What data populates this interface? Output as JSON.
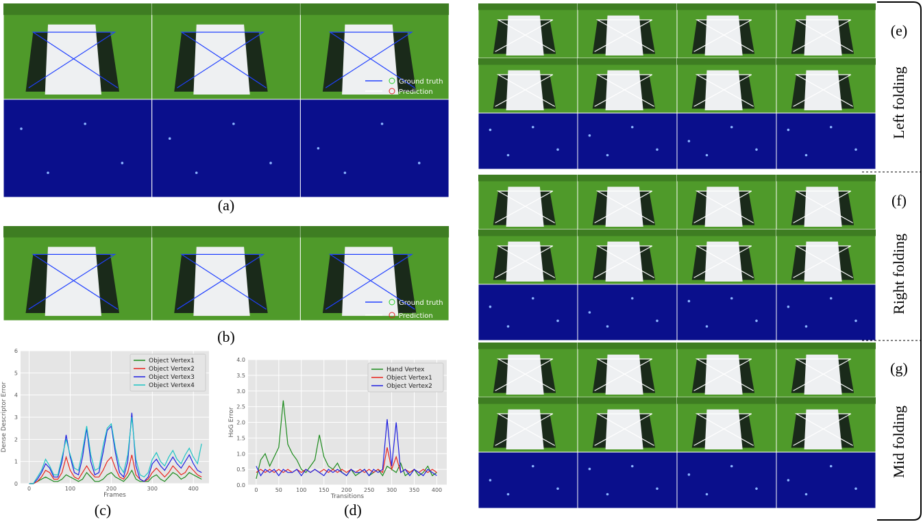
{
  "figure": {
    "panel_labels": [
      "(a)",
      "(b)",
      "(c)",
      "(d)",
      "(e)",
      "(f)",
      "(g)"
    ],
    "photo_legend_a": [
      "Ground truth",
      "Prediction"
    ],
    "photo_legend_b": [
      "Ground truth",
      "Prediction"
    ],
    "row_labels": [
      "Left folding",
      "Right folding",
      "Mid folding"
    ]
  },
  "chart_data": [
    {
      "type": "line",
      "xlabel": "Frames",
      "ylabel": "Dense Descriptor Error",
      "x": [
        0,
        10,
        20,
        30,
        40,
        50,
        60,
        70,
        80,
        90,
        100,
        110,
        120,
        130,
        140,
        150,
        160,
        170,
        180,
        190,
        200,
        210,
        220,
        230,
        240,
        250,
        260,
        270,
        280,
        290,
        300,
        310,
        320,
        330,
        340,
        350,
        360,
        370,
        380,
        390,
        400,
        410,
        420
      ],
      "series": [
        {
          "name": "Object Vertex1",
          "color": "#1a8a1a",
          "values": [
            0,
            0,
            0.1,
            0.2,
            0.3,
            0.2,
            0.1,
            0.1,
            0.2,
            0.4,
            0.3,
            0.2,
            0.1,
            0.2,
            0.5,
            0.3,
            0.1,
            0.1,
            0.2,
            0.4,
            0.5,
            0.3,
            0.2,
            0.1,
            0.3,
            0.6,
            0.2,
            0.1,
            0.1,
            0.1,
            0.3,
            0.4,
            0.2,
            0.1,
            0.3,
            0.5,
            0.4,
            0.2,
            0.3,
            0.5,
            0.4,
            0.3,
            0.2
          ]
        },
        {
          "name": "Object Vertex2",
          "color": "#e8231c",
          "values": [
            0,
            0,
            0.1,
            0.3,
            0.6,
            0.5,
            0.2,
            0.2,
            0.5,
            1.2,
            0.6,
            0.3,
            0.2,
            0.5,
            0.8,
            0.5,
            0.3,
            0.3,
            0.6,
            1.0,
            1.2,
            0.7,
            0.3,
            0.2,
            0.5,
            1.3,
            0.4,
            0.2,
            0.1,
            0.2,
            0.5,
            0.7,
            0.5,
            0.3,
            0.5,
            0.8,
            0.6,
            0.4,
            0.5,
            0.8,
            0.6,
            0.4,
            0.3
          ]
        },
        {
          "name": "Object Vertex3",
          "color": "#1c1ce0",
          "values": [
            0,
            0,
            0.2,
            0.5,
            0.9,
            0.7,
            0.3,
            0.3,
            1.0,
            2.2,
            1.2,
            0.5,
            0.4,
            1.2,
            2.5,
            1.0,
            0.4,
            0.5,
            1.4,
            2.4,
            2.6,
            1.4,
            0.5,
            0.3,
            1.0,
            3.2,
            0.8,
            0.2,
            0.1,
            0.3,
            0.9,
            1.1,
            0.8,
            0.6,
            0.9,
            1.2,
            0.9,
            0.7,
            1.0,
            1.3,
            0.9,
            0.6,
            0.5
          ]
        },
        {
          "name": "Object Vertex4",
          "color": "#1cc4c4",
          "values": [
            0,
            0,
            0.3,
            0.6,
            1.1,
            0.8,
            0.4,
            0.4,
            1.2,
            2.0,
            1.3,
            0.7,
            0.6,
            1.5,
            2.6,
            1.3,
            0.6,
            0.7,
            1.7,
            2.5,
            2.7,
            1.6,
            0.8,
            0.5,
            1.3,
            3.0,
            1.1,
            0.4,
            0.3,
            0.5,
            1.1,
            1.4,
            1.0,
            0.8,
            1.2,
            1.5,
            1.1,
            0.9,
            1.3,
            1.6,
            1.2,
            0.9,
            1.8
          ]
        }
      ],
      "xlim": [
        -21,
        438
      ],
      "xticks": [
        0,
        100,
        200,
        300,
        400
      ],
      "ylim": [
        0,
        6
      ],
      "yticks": [
        0,
        1,
        2,
        3,
        4,
        5,
        6
      ],
      "grid": true,
      "legend": "upper-right"
    },
    {
      "type": "line",
      "xlabel": "Transitions",
      "ylabel": "HoG Error",
      "x": [
        0,
        10,
        20,
        30,
        40,
        50,
        60,
        70,
        80,
        90,
        100,
        110,
        120,
        130,
        140,
        150,
        160,
        170,
        180,
        190,
        200,
        210,
        220,
        230,
        240,
        250,
        260,
        270,
        280,
        290,
        300,
        310,
        320,
        330,
        340,
        350,
        360,
        370,
        380,
        390,
        400
      ],
      "series": [
        {
          "name": "Hand Vertex",
          "color": "#1a8a1a",
          "values": [
            0.2,
            0.8,
            1.0,
            0.6,
            0.9,
            1.2,
            2.7,
            1.3,
            1.0,
            0.8,
            0.5,
            0.4,
            0.6,
            0.8,
            1.6,
            0.9,
            0.6,
            0.5,
            0.7,
            0.4,
            0.3,
            0.5,
            0.3,
            0.4,
            0.5,
            0.3,
            0.4,
            0.5,
            0.3,
            0.6,
            0.5,
            0.4,
            0.7,
            0.3,
            0.4,
            0.5,
            0.3,
            0.4,
            0.6,
            0.3,
            0.4
          ]
        },
        {
          "name": "Object Vertex1",
          "color": "#e8231c",
          "values": [
            0.4,
            0.5,
            0.4,
            0.5,
            0.4,
            0.5,
            0.4,
            0.5,
            0.4,
            0.5,
            0.4,
            0.5,
            0.4,
            0.5,
            0.4,
            0.5,
            0.4,
            0.5,
            0.4,
            0.5,
            0.4,
            0.5,
            0.4,
            0.5,
            0.4,
            0.5,
            0.4,
            0.5,
            0.4,
            1.2,
            0.5,
            0.9,
            0.4,
            0.5,
            0.4,
            0.5,
            0.4,
            0.5,
            0.4,
            0.5,
            0.4
          ]
        },
        {
          "name": "Object Vertex2",
          "color": "#1c1ce0",
          "values": [
            0.6,
            0.3,
            0.5,
            0.4,
            0.5,
            0.3,
            0.5,
            0.4,
            0.4,
            0.5,
            0.3,
            0.5,
            0.4,
            0.5,
            0.4,
            0.3,
            0.5,
            0.4,
            0.5,
            0.4,
            0.3,
            0.5,
            0.4,
            0.4,
            0.5,
            0.3,
            0.5,
            0.4,
            0.5,
            2.1,
            0.6,
            2.0,
            0.4,
            0.5,
            0.3,
            0.5,
            0.4,
            0.3,
            0.5,
            0.4,
            0.3
          ]
        }
      ],
      "xlim": [
        -18,
        422
      ],
      "xticks": [
        0,
        50,
        100,
        150,
        200,
        250,
        300,
        350,
        400
      ],
      "ylim": [
        0,
        4
      ],
      "yticks": [
        {
          "value": 0,
          "label": "0.0"
        },
        {
          "value": 0.5,
          "label": "0.5"
        },
        {
          "value": 1,
          "label": "1.0"
        },
        {
          "value": 1.5,
          "label": "1.5"
        },
        {
          "value": 2,
          "label": "2.0"
        },
        {
          "value": 2.5,
          "label": "2.5"
        },
        {
          "value": 3,
          "label": "3.0"
        },
        {
          "value": 3.5,
          "label": "3.5"
        },
        {
          "value": 4,
          "label": "4.0"
        }
      ],
      "grid": true,
      "legend": "upper-right"
    }
  ]
}
